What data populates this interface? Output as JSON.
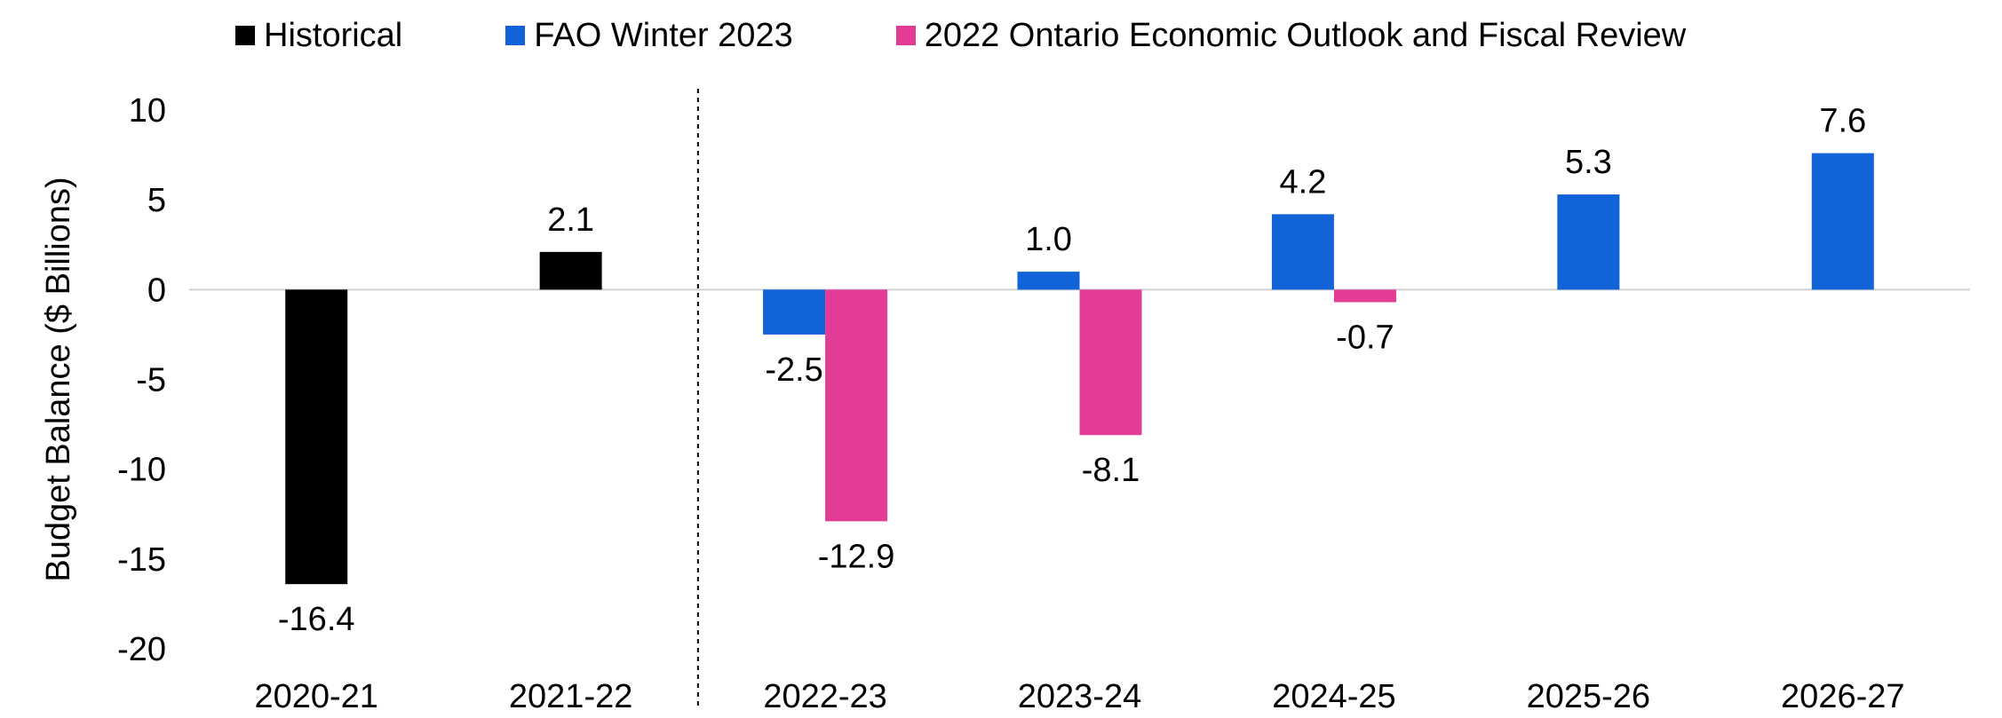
{
  "chart_data": {
    "type": "bar",
    "ylabel": "Budget Balance ($ Billions)",
    "xlabel": "",
    "ylim": [
      -20,
      10
    ],
    "yticks": [
      10,
      5,
      0,
      -5,
      -10,
      -15,
      -20
    ],
    "categories": [
      "2020-21",
      "2021-22",
      "2022-23",
      "2023-24",
      "2024-25",
      "2025-26",
      "2026-27"
    ],
    "series": [
      {
        "name": "Historical",
        "color": "#000000",
        "values": [
          -16.4,
          2.1,
          null,
          null,
          null,
          null,
          null
        ],
        "labels": [
          "-16.4",
          "2.1",
          null,
          null,
          null,
          null,
          null
        ]
      },
      {
        "name": "FAO Winter 2023",
        "color": "#1262D8",
        "values": [
          null,
          null,
          -2.5,
          1.0,
          4.2,
          5.3,
          7.6
        ],
        "labels": [
          null,
          null,
          "-2.5",
          "1.0",
          "4.2",
          "5.3",
          "7.6"
        ]
      },
      {
        "name": "2022 Ontario Economic Outlook and Fiscal Review",
        "color": "#E33C97",
        "values": [
          null,
          null,
          -12.9,
          -8.1,
          -0.7,
          null,
          null
        ],
        "labels": [
          null,
          null,
          "-12.9",
          "-8.1",
          "-0.7",
          null,
          null
        ]
      }
    ],
    "grid": false,
    "legend_position": "top",
    "divider_after_category": 1
  }
}
